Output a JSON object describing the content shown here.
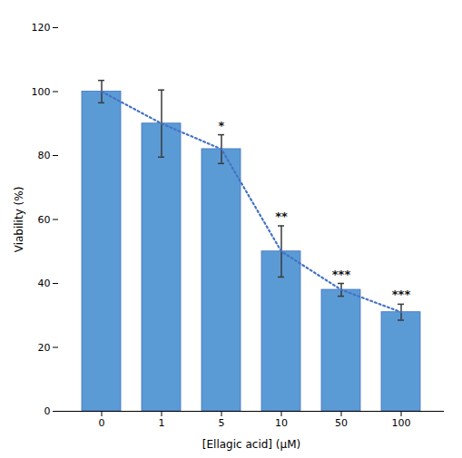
{
  "chart_data": {
    "type": "bar",
    "categories": [
      "0",
      "1",
      "5",
      "10",
      "50",
      "100"
    ],
    "values": [
      100,
      90,
      82,
      50,
      38,
      31
    ],
    "errors": [
      3.5,
      10.5,
      4.5,
      8.0,
      2.0,
      2.5
    ],
    "color": "#5B9BD5",
    "xlabel": "[Ellagic acid] (μM)",
    "ylabel": "Viability (%)",
    "ylim": [
      0,
      120
    ],
    "yticks": [
      0,
      20,
      40,
      60,
      80,
      100,
      120
    ],
    "grid": false,
    "line_style": "dotted",
    "annotations": [
      {
        "category": "5",
        "text": "*"
      },
      {
        "category": "10",
        "text": "**"
      },
      {
        "category": "50",
        "text": "***"
      },
      {
        "category": "100",
        "text": "***"
      }
    ]
  }
}
